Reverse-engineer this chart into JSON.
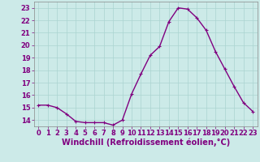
{
  "x": [
    0,
    1,
    2,
    3,
    4,
    5,
    6,
    7,
    8,
    9,
    10,
    11,
    12,
    13,
    14,
    15,
    16,
    17,
    18,
    19,
    20,
    21,
    22,
    23
  ],
  "y": [
    15.2,
    15.2,
    15.0,
    14.5,
    13.9,
    13.8,
    13.8,
    13.8,
    13.6,
    14.0,
    16.1,
    17.7,
    19.2,
    19.9,
    21.9,
    23.0,
    22.9,
    22.2,
    21.2,
    19.5,
    18.1,
    16.7,
    15.4,
    14.7
  ],
  "line_color": "#800080",
  "marker": "+",
  "marker_size": 3,
  "bg_color": "#cceae8",
  "grid_color": "#aad4d0",
  "xlabel": "Windchill (Refroidissement éolien,°C)",
  "xlabel_fontsize": 7,
  "tick_fontsize": 6,
  "ylim": [
    13.5,
    23.5
  ],
  "yticks": [
    14,
    15,
    16,
    17,
    18,
    19,
    20,
    21,
    22,
    23
  ],
  "xticks": [
    0,
    1,
    2,
    3,
    4,
    5,
    6,
    7,
    8,
    9,
    10,
    11,
    12,
    13,
    14,
    15,
    16,
    17,
    18,
    19,
    20,
    21,
    22,
    23
  ],
  "spine_color": "#888888",
  "line_width": 1.0,
  "marker_edge_width": 0.8
}
